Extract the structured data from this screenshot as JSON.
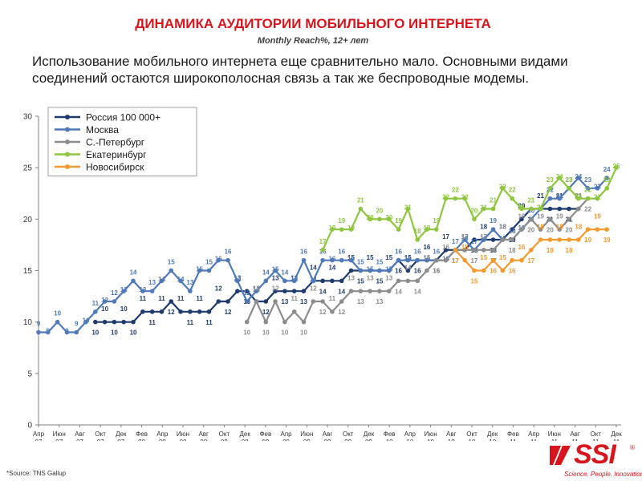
{
  "header": {
    "title": "ДИНАМИКА АУДИТОРИИ МОБИЛЬНОГО ИНТЕРНЕТА",
    "subtitle": "Monthly Reach%, 12+ лет",
    "description": "Использование мобильного интернета еще сравнительно мало. Основными видами соединений остаются широкополосная связь а так же беспроводные модемы."
  },
  "footer": {
    "source": "*Source: TNS Gallup",
    "logo_text": "SSI",
    "logo_reg": "®",
    "logo_tagline": "Science. People. Innovation"
  },
  "chart_data": {
    "type": "line",
    "title": "",
    "xlabel": "",
    "ylabel": "",
    "ylim": [
      0,
      30
    ],
    "yticks": [
      0,
      5,
      10,
      15,
      20,
      25,
      30
    ],
    "grid": false,
    "legend_position": "top-left",
    "x_tick_labels": [
      [
        "Апр",
        "07"
      ],
      [
        "Июн",
        "07"
      ],
      [
        "Авг",
        "07"
      ],
      [
        "Окт",
        "07"
      ],
      [
        "Дек",
        "07"
      ],
      [
        "Фев",
        "08"
      ],
      [
        "Апр",
        "08"
      ],
      [
        "Июн",
        "08"
      ],
      [
        "Авг",
        "08"
      ],
      [
        "Окт",
        "08"
      ],
      [
        "Дек",
        "08"
      ],
      [
        "Фев",
        "09"
      ],
      [
        "Апр",
        "09"
      ],
      [
        "Июн",
        "09"
      ],
      [
        "Авг",
        "09"
      ],
      [
        "Окт",
        "09"
      ],
      [
        "Дек",
        "09"
      ],
      [
        "Фев",
        "10"
      ],
      [
        "Апр",
        "10"
      ],
      [
        "Июн",
        "10"
      ],
      [
        "Авг",
        "10"
      ],
      [
        "Окт",
        "10"
      ],
      [
        "Дек",
        "10"
      ],
      [
        "Фев",
        "11"
      ],
      [
        "Апр",
        "11"
      ],
      [
        "Июн",
        "11"
      ],
      [
        "Авг",
        "11"
      ],
      [
        "Окт",
        "11"
      ],
      [
        "Дек",
        "11"
      ]
    ],
    "series": [
      {
        "name": "Россия 100 000+",
        "color": "#1f3b6e",
        "start_index": 6,
        "values": [
          10,
          10,
          10,
          10,
          10,
          11,
          11,
          11,
          12,
          11,
          11,
          11,
          11,
          12,
          12,
          13,
          13,
          12,
          12,
          13,
          13,
          13,
          13,
          14,
          14,
          14,
          14,
          15,
          15,
          15,
          15,
          15,
          16,
          15,
          16,
          16,
          16,
          17,
          17,
          17,
          18,
          18,
          18,
          18,
          19,
          20,
          21,
          21,
          21,
          21,
          21,
          21
        ]
      },
      {
        "name": "Москва",
        "color": "#4f79b8",
        "start_index": 0,
        "values": [
          9,
          9,
          10,
          9,
          9,
          10,
          11,
          12,
          12,
          13,
          14,
          13,
          13,
          14,
          15,
          14,
          13,
          15,
          15,
          16,
          16,
          14,
          12,
          13,
          14,
          15,
          14,
          14,
          16,
          14,
          16,
          16,
          16,
          16,
          15,
          15,
          15,
          15,
          16,
          16,
          16,
          16,
          16,
          16,
          17,
          18,
          17,
          18,
          19,
          18,
          18,
          19,
          20,
          21,
          22,
          22,
          23,
          24,
          23,
          23,
          24
        ]
      },
      {
        "name": "С.-Петербург",
        "color": "#8c8c8c",
        "start_index": 22,
        "values": [
          10,
          12,
          10,
          12,
          10,
          11,
          10,
          12,
          12,
          11,
          12,
          13,
          13,
          13,
          13,
          13,
          14,
          14,
          14,
          15,
          16,
          16,
          17,
          17,
          17,
          17,
          17,
          18,
          18,
          19,
          20,
          19,
          20,
          19,
          20,
          21,
          22
        ]
      },
      {
        "name": "Екатеринбург",
        "color": "#8ec63f",
        "start_index": 30,
        "values": [
          17,
          19,
          19,
          19,
          21,
          20,
          20,
          20,
          19,
          21,
          18,
          19,
          19,
          22,
          22,
          22,
          20,
          21,
          21,
          23,
          22,
          21,
          21,
          21,
          23,
          24,
          23,
          22,
          22,
          22,
          23,
          25
        ]
      },
      {
        "name": "Новосибирск",
        "color": "#f29a2e",
        "start_index": 44,
        "values": [
          17,
          16,
          15,
          15,
          16,
          15,
          16,
          16,
          17,
          18,
          18,
          18,
          18,
          18,
          19,
          19,
          19
        ]
      }
    ]
  }
}
